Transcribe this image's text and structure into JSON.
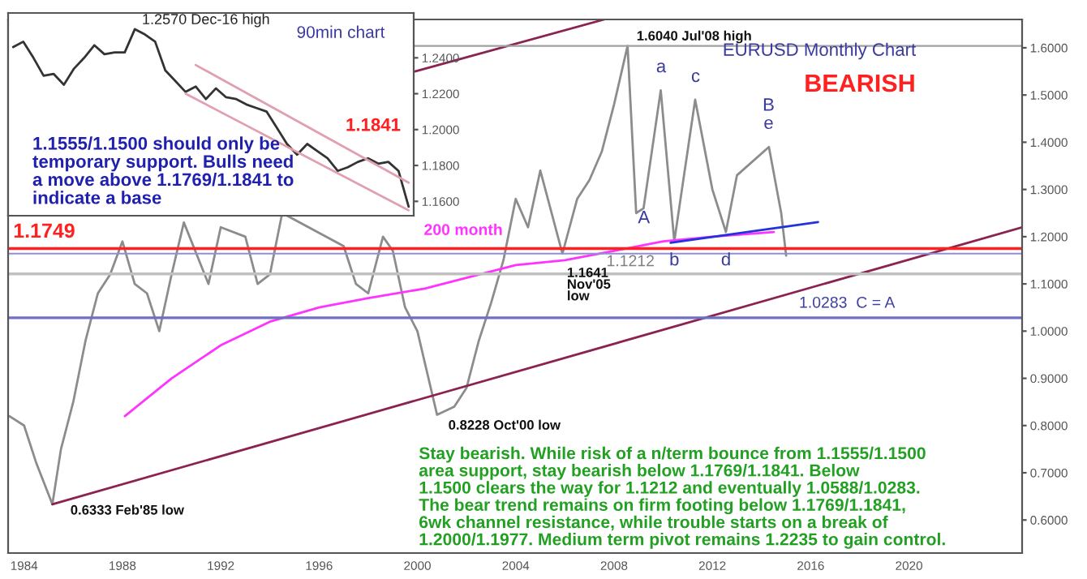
{
  "chart_data": [
    {
      "type": "line",
      "title": null,
      "xlim": [
        1983.35,
        2024.6
      ],
      "xticks": [
        1984,
        1988,
        1992,
        1996,
        2000,
        2004,
        2008,
        2012,
        2016,
        2020
      ],
      "ylim": [
        0.53,
        1.66
      ],
      "yticks": [
        {
          "value": 0.6,
          "label": "0.6000"
        },
        {
          "value": 0.7,
          "label": "0.7000"
        },
        {
          "value": 0.8,
          "label": "0.8000"
        },
        {
          "value": 0.9,
          "label": "0.9000"
        },
        {
          "value": 1.0,
          "label": "1.0000"
        },
        {
          "value": 1.1,
          "label": "1.1000"
        },
        {
          "value": 1.2,
          "label": "1.2000"
        },
        {
          "value": 1.3,
          "label": "1.3000"
        },
        {
          "value": 1.4,
          "label": "1.4000"
        },
        {
          "value": 1.5,
          "label": "1.5000"
        },
        {
          "value": 1.6,
          "label": "1.6000"
        }
      ],
      "series": [
        {
          "color": "#8c8c8c",
          "x": [
            1983.4,
            1984.0,
            1984.5,
            1985.15,
            1985.5,
            1986.0,
            1986.5,
            1987.0,
            1987.5,
            1988.0,
            1988.5,
            1989.0,
            1989.5,
            1990.0,
            1990.5,
            1991.0,
            1991.5,
            1992.0,
            1992.6,
            1993.0,
            1993.5,
            1994.0,
            1994.5,
            1995.0,
            1995.5,
            1996.0,
            1996.5,
            1997.0,
            1997.5,
            1998.0,
            1998.6,
            1999.0,
            1999.5,
            2000.0,
            2000.8,
            2001.5,
            2002.0,
            2002.5,
            2003.0,
            2003.5,
            2004.0,
            2004.5,
            2005.0,
            2005.9,
            2006.5,
            2007.0,
            2007.5,
            2008.0,
            2008.55,
            2008.9,
            2009.2,
            2009.9,
            2010.45,
            2011.3,
            2012.0,
            2012.55,
            2013.0,
            2014.3,
            2014.8,
            2015.0
          ],
          "values": [
            0.82,
            0.8,
            0.72,
            0.6333,
            0.75,
            0.85,
            0.98,
            1.08,
            1.12,
            1.19,
            1.1,
            1.08,
            1.0,
            1.12,
            1.23,
            null,
            1.1,
            1.22,
            null,
            1.2,
            1.1,
            1.12,
            1.25,
            null,
            null,
            null,
            null,
            1.18,
            1.1,
            1.08,
            1.2,
            1.17,
            1.05,
            1.0,
            0.8228,
            0.84,
            0.88,
            0.98,
            1.06,
            1.15,
            1.28,
            1.22,
            1.34,
            1.1641,
            1.28,
            1.32,
            1.38,
            1.48,
            1.604,
            1.25,
            1.26,
            1.51,
            1.19,
            1.49,
            1.3,
            1.21,
            1.33,
            1.39,
            1.25,
            1.16
          ]
        },
        {
          "color": "#ff33ff",
          "x": [
            1988.1,
            1990,
            1992,
            1994,
            1996,
            1998,
            2000.3,
            2004,
            2006,
            2008,
            2010,
            2012,
            2014.5
          ],
          "values": [
            0.82,
            0.9,
            0.97,
            1.02,
            1.05,
            1.07,
            1.09,
            1.14,
            1.15,
            1.17,
            1.19,
            1.2,
            1.21
          ]
        },
        {
          "color": "#2233dd",
          "x": [
            2010.3,
            2016.3
          ],
          "values": [
            1.187,
            1.231
          ]
        },
        {
          "color": "#8b2252",
          "x": [
            1985.15,
            2024.6
          ],
          "values": [
            0.6333,
            1.22
          ]
        },
        {
          "color": "#8b2252",
          "x": [
            1999.9,
            2007.6
          ],
          "values": [
            1.55,
            1.66
          ]
        }
      ],
      "ref_lines": [
        {
          "axis": "y",
          "value": 1.604,
          "label": null,
          "color": "#a0a0a0"
        },
        {
          "axis": "y",
          "value": 1.1749,
          "label": "1.1749",
          "color": "#ff2020"
        },
        {
          "axis": "y",
          "value": 1.1641,
          "label": null,
          "color": "#9090d0"
        },
        {
          "axis": "y",
          "value": 1.1212,
          "label": "1.1212",
          "color": "#c0c0c0"
        },
        {
          "axis": "y",
          "value": 1.0283,
          "label": "1.0283  C = A",
          "color": "#7070c0"
        }
      ],
      "annotations": [
        "EURUSD Monthly Chart",
        "BEARISH",
        "Stay bearish. While risk of a n/term bounce from 1.1555/1.1500\narea support, stay bearish below 1.1769/1.1841. Below\n1.1500 clears the way for 1.1212 and eventually 1.0588/1.0283.\nThe bear trend remains on firm footing below 1.1769/1.1841,\n6wk channel resistance, while trouble starts on a break of\n1.2000/1.1977. Medium term pivot remains 1.2235 to gain control.",
        {
          "text": "1.6040 Jul'08 high",
          "x": 2008.55,
          "y": 1.604
        },
        {
          "text": "0.8228 Oct'00 low",
          "x": 2000.8,
          "y": 0.8228
        },
        {
          "text": "0.6333 Feb'85 low",
          "x": 1985.15,
          "y": 0.6333
        },
        {
          "text": "1.1641\nNov'05\nlow",
          "x": 2005.9,
          "y": 1.1641
        },
        "200 month",
        "A",
        "a",
        "b",
        "c",
        "d",
        "e",
        "B"
      ]
    },
    {
      "type": "line",
      "tick_labels": "y",
      "categories": [
        null,
        null,
        null,
        null,
        null,
        null,
        null,
        null,
        null,
        null,
        null,
        null,
        null,
        null,
        null,
        null,
        null,
        null,
        null,
        null,
        null,
        null,
        null,
        null,
        null,
        null,
        null,
        null,
        null,
        null,
        null,
        null,
        null,
        null,
        null,
        null,
        null,
        null,
        null,
        null
      ],
      "ylim": [
        1.152,
        1.265
      ],
      "yticks": [
        {
          "value": 1.16,
          "label": "1.1600"
        },
        {
          "value": 1.18,
          "label": "1.1800"
        },
        {
          "value": 1.2,
          "label": "1.2000"
        },
        {
          "value": 1.22,
          "label": "1.2200"
        },
        {
          "value": 1.24,
          "label": "1.2400"
        }
      ],
      "series": [
        {
          "color": "#333333",
          "values": [
            1.246,
            1.249,
            1.24,
            1.23,
            1.231,
            1.225,
            1.234,
            1.24,
            1.247,
            1.242,
            1.243,
            1.243,
            1.256,
            1.253,
            1.249,
            1.233,
            1.227,
            1.221,
            1.224,
            1.217,
            1.223,
            1.218,
            1.217,
            1.214,
            1.212,
            1.21,
            1.201,
            1.192,
            1.186,
            1.192,
            1.188,
            1.184,
            1.177,
            1.179,
            1.182,
            1.184,
            1.181,
            1.182,
            1.177,
            1.157
          ]
        },
        {
          "color": "#e0a0b0",
          "values": [
            null,
            null,
            null,
            null,
            null,
            null,
            null,
            null,
            null,
            null,
            null,
            null,
            null,
            null,
            null,
            null,
            null,
            null,
            1.236,
            null,
            null,
            null,
            null,
            null,
            null,
            null,
            null,
            null,
            null,
            null,
            null,
            null,
            null,
            null,
            null,
            null,
            null,
            null,
            null,
            1.1704
          ]
        },
        {
          "color": "#e0a0b0",
          "values": [
            null,
            null,
            null,
            null,
            null,
            null,
            null,
            null,
            null,
            null,
            null,
            null,
            null,
            null,
            null,
            null,
            null,
            1.22,
            null,
            null,
            null,
            null,
            null,
            null,
            null,
            null,
            null,
            null,
            null,
            null,
            null,
            null,
            null,
            null,
            null,
            null,
            null,
            null,
            null,
            1.155
          ]
        }
      ],
      "annotations": [
        "1.2570 Dec-16 high",
        "90min chart",
        "1.1841",
        "1.1555/1.1500 should only be\ntemporary support. Bulls need\na move above 1.1769/1.1841 to\nindicate a base"
      ]
    }
  ]
}
